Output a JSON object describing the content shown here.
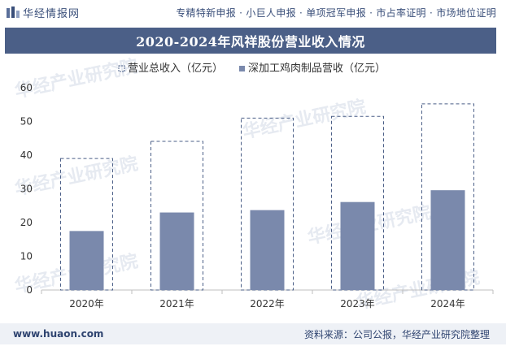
{
  "header": {
    "brand": "华经情报网",
    "tags": "专精特新申报 · 小巨人申报 · 单项冠军申报 · 市占率证明 · 市场地位证明"
  },
  "footer": {
    "url": "www.huaon.com",
    "source": "资料来源：公司公报，华经产业研究院整理"
  },
  "watermark": "华经产业研究院",
  "colors": {
    "title_bg": "#4b5f87",
    "bar_fill": "#7a89ac",
    "dashed_border": "#4b5f87"
  },
  "chart_data": {
    "type": "bar",
    "title": "2020-2024年风祥股份营业收入情况",
    "categories": [
      "2020年",
      "2021年",
      "2022年",
      "2023年",
      "2024年"
    ],
    "series": [
      {
        "name": "营业总收入（亿元）",
        "style": "dashed-outline",
        "values": [
          39.0,
          44.1,
          51.0,
          51.5,
          55.2
        ]
      },
      {
        "name": "深加工鸡肉制品营收（亿元）",
        "style": "filled",
        "values": [
          17.5,
          23.0,
          23.7,
          26.1,
          29.6
        ]
      }
    ],
    "ylim": [
      0,
      60
    ],
    "yticks": [
      0,
      10,
      20,
      30,
      40,
      50,
      60
    ],
    "xlabel": "",
    "ylabel": "",
    "legend": "top-center"
  }
}
